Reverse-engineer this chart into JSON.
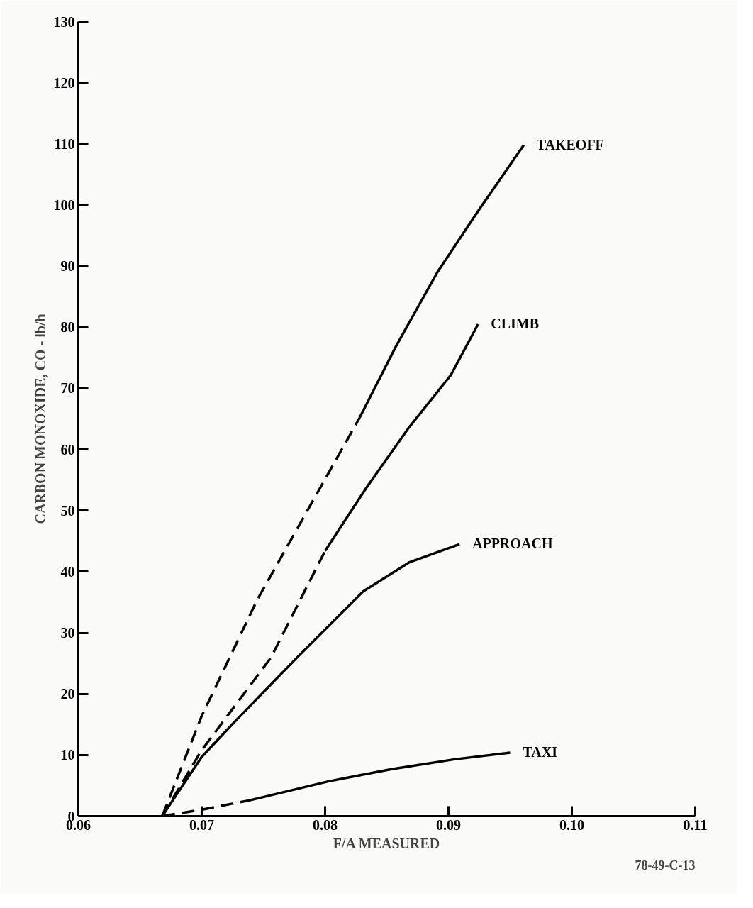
{
  "chart_data": {
    "type": "line",
    "xlabel": "F/A MEASURED",
    "ylabel": "CARBON MONOXIDE, CO - lb/h",
    "xlim": [
      0.06,
      0.11
    ],
    "xticks": [
      0.06,
      0.07,
      0.08,
      0.09,
      {
        "value": 0.1,
        "label": "0.10"
      },
      0.11
    ],
    "ylim": [
      0,
      130
    ],
    "yticks": [
      0,
      10,
      20,
      30,
      40,
      50,
      60,
      70,
      80,
      90,
      100,
      110,
      120,
      130
    ],
    "grid": false,
    "marker": "none",
    "series": [
      {
        "color": "#000000",
        "line_style": "dashed",
        "x": [
          0.0668,
          0.07,
          0.0745,
          0.0828
        ],
        "values": [
          0,
          16.4,
          35.4,
          65.2
        ]
      },
      {
        "name": "TAKEOFF",
        "color": "#000000",
        "line_style": "solid",
        "x": [
          0.0828,
          0.0857,
          0.0891,
          0.0924,
          0.0961
        ],
        "values": [
          65.2,
          76.7,
          89,
          99,
          109.8
        ]
      },
      {
        "color": "#000000",
        "line_style": "dashed",
        "x": [
          0.0668,
          0.07,
          0.0756,
          0.08
        ],
        "values": [
          0,
          10.8,
          25.9,
          43.4
        ]
      },
      {
        "name": "CLIMB",
        "color": "#000000",
        "line_style": "solid",
        "x": [
          0.08,
          0.0833,
          0.0868,
          0.0902,
          0.0924
        ],
        "values": [
          43.4,
          53.6,
          63.6,
          72.2,
          80.5
        ]
      },
      {
        "name": "APPROACH",
        "color": "#000000",
        "line_style": "solid",
        "x": [
          0.0668,
          0.07,
          0.0726,
          0.0777,
          0.0831,
          0.0868,
          0.0909
        ],
        "values": [
          0,
          9.7,
          15.3,
          25.9,
          36.8,
          41.5,
          44.5
        ]
      },
      {
        "color": "#000000",
        "line_style": "dashed",
        "x": [
          0.0668,
          0.0701,
          0.0739
        ],
        "values": [
          0,
          1.1,
          2.6
        ]
      },
      {
        "name": "TAXI",
        "color": "#000000",
        "line_style": "solid",
        "x": [
          0.0739,
          0.0803,
          0.0854,
          0.0905,
          0.095
        ],
        "values": [
          2.6,
          5.7,
          7.7,
          9.3,
          10.4
        ]
      }
    ],
    "annotations": [
      "78-49-C-13"
    ]
  }
}
